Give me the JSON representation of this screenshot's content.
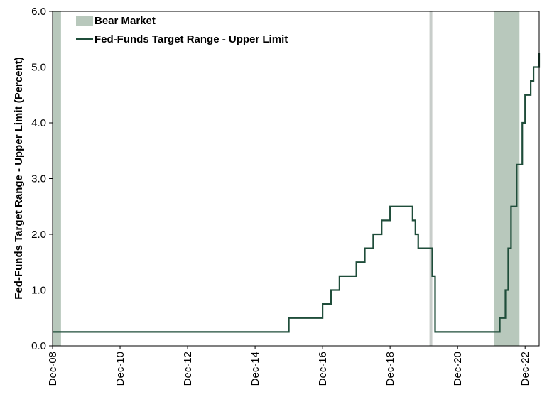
{
  "chart_data": {
    "type": "line",
    "ylabel": "Fed-Funds Target Range - Upper Limit (Percent)",
    "ylim": [
      0,
      6
    ],
    "yticks": [
      "0.0",
      "1.0",
      "2.0",
      "3.0",
      "4.0",
      "5.0",
      "6.0"
    ],
    "xlim": [
      "2008-12",
      "2023-05"
    ],
    "xticks": [
      "Dec-08",
      "Dec-10",
      "Dec-12",
      "Dec-14",
      "Dec-16",
      "Dec-18",
      "Dec-20",
      "Dec-22"
    ],
    "legend_position": "top-left",
    "legend": {
      "bear": "Bear Market",
      "line": "Fed-Funds Target Range - Upper Limit"
    },
    "colors": {
      "line": "#1f4d3a",
      "bear": "#b8c8bc",
      "bear_narrow": "#c8cdca"
    },
    "bear_markets": [
      {
        "start": "2008-12",
        "end": "2009-03"
      },
      {
        "start": "2020-02",
        "end": "2020-03"
      },
      {
        "start": "2022-01",
        "end": "2022-10"
      }
    ],
    "series": [
      {
        "name": "Fed-Funds Target Range - Upper Limit",
        "step": true,
        "points": [
          {
            "x": "2008-12",
            "y": 0.25
          },
          {
            "x": "2015-12",
            "y": 0.5
          },
          {
            "x": "2016-12",
            "y": 0.75
          },
          {
            "x": "2017-03",
            "y": 1.0
          },
          {
            "x": "2017-06",
            "y": 1.25
          },
          {
            "x": "2017-12",
            "y": 1.5
          },
          {
            "x": "2018-03",
            "y": 1.75
          },
          {
            "x": "2018-06",
            "y": 2.0
          },
          {
            "x": "2018-09",
            "y": 2.25
          },
          {
            "x": "2018-12",
            "y": 2.5
          },
          {
            "x": "2019-08",
            "y": 2.25
          },
          {
            "x": "2019-09",
            "y": 2.0
          },
          {
            "x": "2019-10",
            "y": 1.75
          },
          {
            "x": "2020-03",
            "y": 1.25
          },
          {
            "x": "2020-04",
            "y": 0.25
          },
          {
            "x": "2022-03",
            "y": 0.5
          },
          {
            "x": "2022-05",
            "y": 1.0
          },
          {
            "x": "2022-06",
            "y": 1.75
          },
          {
            "x": "2022-07",
            "y": 2.5
          },
          {
            "x": "2022-09",
            "y": 3.25
          },
          {
            "x": "2022-11",
            "y": 4.0
          },
          {
            "x": "2022-12",
            "y": 4.5
          },
          {
            "x": "2023-02",
            "y": 4.75
          },
          {
            "x": "2023-03",
            "y": 5.0
          },
          {
            "x": "2023-05",
            "y": 5.25
          }
        ]
      }
    ]
  }
}
